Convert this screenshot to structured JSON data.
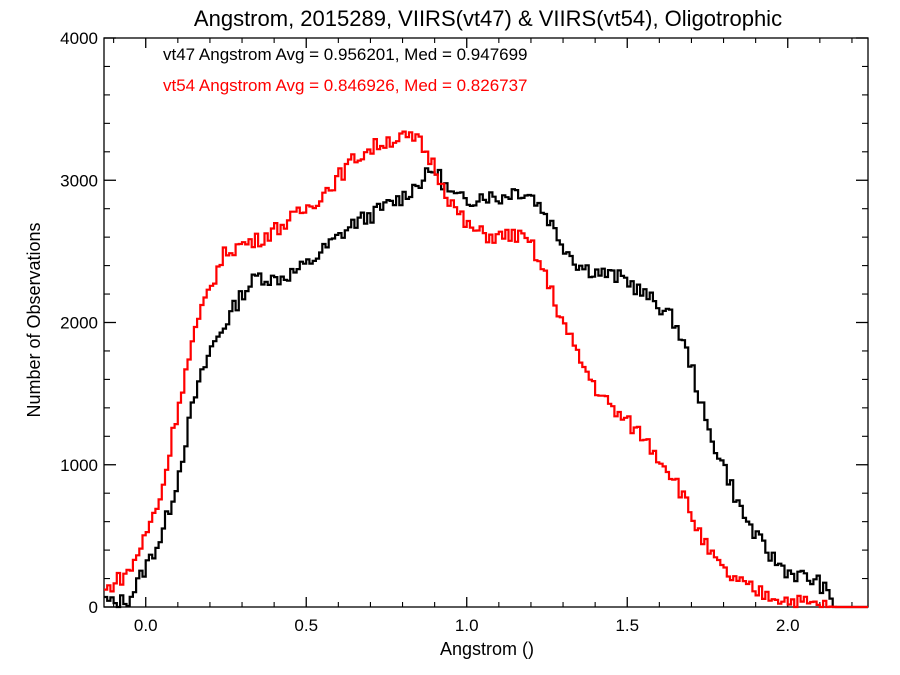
{
  "chart_data": {
    "type": "line",
    "title": "Angstrom, 2015289, VIIRS(vt47) & VIIRS(vt54), Oligotrophic",
    "xlabel": "Angstrom ()",
    "ylabel": "Number of Observations",
    "xlim": [
      -0.13,
      2.25
    ],
    "ylim": [
      0,
      4000
    ],
    "xticks": [
      0.0,
      0.5,
      1.0,
      1.5,
      2.0
    ],
    "xtick_labels": [
      "0.0",
      "0.5",
      "1.0",
      "1.5",
      "2.0"
    ],
    "yticks": [
      0,
      1000,
      2000,
      3000,
      4000
    ],
    "ytick_labels": [
      "0",
      "1000",
      "2000",
      "3000",
      "4000"
    ],
    "grid": false,
    "step": "histogram",
    "annotations": [
      {
        "text": "vt47 Angstrom Avg = 0.956201, Med = 0.947699",
        "color": "#000000"
      },
      {
        "text": "vt54 Angstrom Avg = 0.846926, Med = 0.826737",
        "color": "#ff0000"
      }
    ],
    "series": [
      {
        "color": "#000000",
        "x": [
          -0.13,
          -0.1,
          -0.05,
          0.0,
          0.05,
          0.1,
          0.15,
          0.2,
          0.25,
          0.3,
          0.35,
          0.4,
          0.45,
          0.5,
          0.55,
          0.6,
          0.65,
          0.7,
          0.75,
          0.8,
          0.85,
          0.9,
          0.95,
          1.0,
          1.05,
          1.1,
          1.15,
          1.2,
          1.25,
          1.3,
          1.35,
          1.4,
          1.45,
          1.5,
          1.55,
          1.6,
          1.65,
          1.7,
          1.75,
          1.8,
          1.85,
          1.9,
          1.95,
          2.0,
          2.05,
          2.1,
          2.15,
          2.2,
          2.25
        ],
        "y": [
          50,
          20,
          60,
          280,
          500,
          900,
          1450,
          1800,
          2000,
          2200,
          2330,
          2300,
          2340,
          2400,
          2500,
          2600,
          2700,
          2750,
          2820,
          2880,
          2980,
          3080,
          2900,
          2850,
          2900,
          2870,
          2930,
          2900,
          2750,
          2550,
          2400,
          2360,
          2330,
          2300,
          2200,
          2120,
          2000,
          1700,
          1250,
          1000,
          700,
          500,
          350,
          250,
          210,
          170,
          0,
          0,
          0
        ]
      },
      {
        "color": "#ff0000",
        "x": [
          -0.13,
          -0.1,
          -0.05,
          0.0,
          0.05,
          0.1,
          0.15,
          0.2,
          0.25,
          0.3,
          0.35,
          0.4,
          0.45,
          0.5,
          0.55,
          0.6,
          0.65,
          0.7,
          0.75,
          0.8,
          0.85,
          0.9,
          0.95,
          1.0,
          1.05,
          1.1,
          1.15,
          1.2,
          1.25,
          1.3,
          1.35,
          1.4,
          1.45,
          1.5,
          1.55,
          1.6,
          1.65,
          1.7,
          1.75,
          1.8,
          1.85,
          1.9,
          1.95,
          2.0,
          2.05,
          2.1,
          2.15,
          2.2,
          2.25
        ],
        "y": [
          100,
          170,
          250,
          500,
          800,
          1400,
          1900,
          2250,
          2500,
          2550,
          2580,
          2650,
          2720,
          2800,
          2900,
          3020,
          3150,
          3220,
          3280,
          3300,
          3280,
          3100,
          2850,
          2680,
          2620,
          2600,
          2620,
          2550,
          2300,
          2000,
          1750,
          1550,
          1400,
          1300,
          1200,
          1050,
          900,
          650,
          400,
          250,
          170,
          110,
          80,
          50,
          30,
          10,
          0,
          0,
          0
        ]
      }
    ]
  }
}
